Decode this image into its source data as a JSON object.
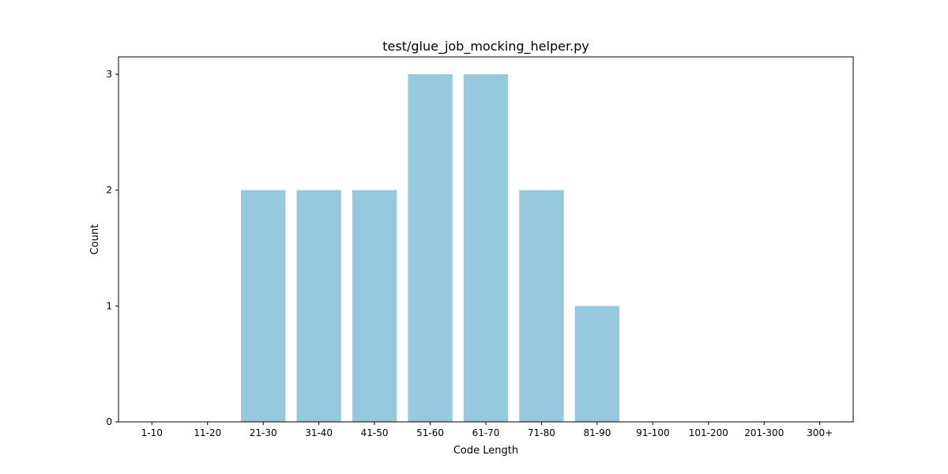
{
  "chart_data": {
    "type": "bar",
    "title": "test/glue_job_mocking_helper.py",
    "xlabel": "Code Length",
    "ylabel": "Count",
    "categories": [
      "1-10",
      "11-20",
      "21-30",
      "31-40",
      "41-50",
      "51-60",
      "61-70",
      "71-80",
      "81-90",
      "91-100",
      "101-200",
      "201-300",
      "300+"
    ],
    "values": [
      0,
      0,
      2,
      2,
      2,
      3,
      3,
      2,
      1,
      0,
      0,
      0,
      0
    ],
    "ylim": [
      0,
      3.15
    ],
    "yticks": [
      0,
      1,
      2,
      3
    ],
    "grid": false,
    "bar_color": "#96c9de"
  }
}
